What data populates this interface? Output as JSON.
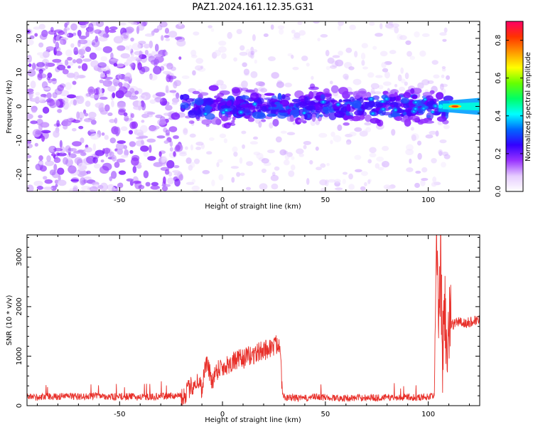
{
  "title": "PAZ1.2024.161.12.35.G31",
  "chart_data": [
    {
      "type": "heatmap",
      "xlabel": "Height of straight line (km)",
      "ylabel": "Frequency (Hz)",
      "xlim": [
        -95,
        125
      ],
      "ylim": [
        -25,
        25
      ],
      "xticks": [
        -50,
        0,
        50,
        100
      ],
      "xtick_labels": [
        "-50",
        "0",
        "50",
        "100"
      ],
      "yticks": [
        -20,
        -10,
        0,
        10,
        20
      ],
      "ytick_labels": [
        "-20",
        "-10",
        "0",
        "10",
        "20"
      ],
      "colorbar": {
        "label": "Normalized spectral amplitude",
        "range": [
          0.0,
          0.9
        ],
        "ticks": [
          0.0,
          0.2,
          0.4,
          0.6,
          0.8
        ],
        "tick_labels": [
          "0.0",
          "0.2",
          "0.4",
          "0.6",
          "0.8"
        ],
        "colormap": [
          "#ffffff",
          "#e6ccff",
          "#9933ff",
          "#3300ff",
          "#0066ff",
          "#00ffff",
          "#00ff66",
          "#66ff00",
          "#ffff00",
          "#ff9900",
          "#ff3300",
          "#ff0066"
        ]
      },
      "features": {
        "diffuse_region_x": [
          -95,
          -20
        ],
        "band_region_x": [
          -20,
          110
        ],
        "band_center_hz": 0,
        "strong_signal_x": [
          105,
          125
        ],
        "strong_signal_peak_amplitude": 0.85
      },
      "grid": false
    },
    {
      "type": "line",
      "xlabel": "Height of straight line (km)",
      "ylabel": "SNR (10 * v/v)",
      "xlim": [
        -95,
        125
      ],
      "ylim": [
        0,
        3450
      ],
      "xticks": [
        -50,
        0,
        50,
        100
      ],
      "xtick_labels": [
        "-50",
        "0",
        "50",
        "100"
      ],
      "yticks": [
        0,
        1000,
        2000,
        3000
      ],
      "ytick_labels": [
        "0",
        "1000",
        "2000",
        "3000"
      ],
      "series_color": "#e8302a",
      "series": [
        {
          "x": [
            -95,
            -90,
            -85,
            -80,
            -75,
            -70,
            -65,
            -60,
            -55,
            -50,
            -45,
            -40,
            -35,
            -30,
            -25,
            -20,
            -18,
            -15,
            -12,
            -10,
            -8,
            -5,
            -3,
            -1,
            0,
            3,
            6,
            10,
            13,
            16,
            19,
            22,
            25,
            27,
            28,
            29,
            30,
            35,
            40,
            45,
            50,
            55,
            60,
            65,
            70,
            75,
            80,
            85,
            90,
            95,
            100,
            103,
            104,
            105,
            106,
            107,
            108,
            109,
            110,
            112,
            115,
            118,
            121,
            125
          ],
          "y": [
            150,
            140,
            160,
            150,
            170,
            150,
            160,
            180,
            150,
            150,
            160,
            140,
            150,
            160,
            170,
            180,
            250,
            400,
            500,
            350,
            900,
            500,
            700,
            800,
            750,
            850,
            900,
            950,
            1000,
            1050,
            1100,
            1150,
            1200,
            1250,
            1300,
            300,
            140,
            130,
            120,
            150,
            140,
            130,
            120,
            130,
            140,
            130,
            140,
            130,
            150,
            140,
            150,
            200,
            3400,
            1200,
            2900,
            1000,
            2100,
            1200,
            1500,
            1650,
            1700,
            1650,
            1700,
            1750
          ]
        }
      ],
      "grid": false
    }
  ]
}
